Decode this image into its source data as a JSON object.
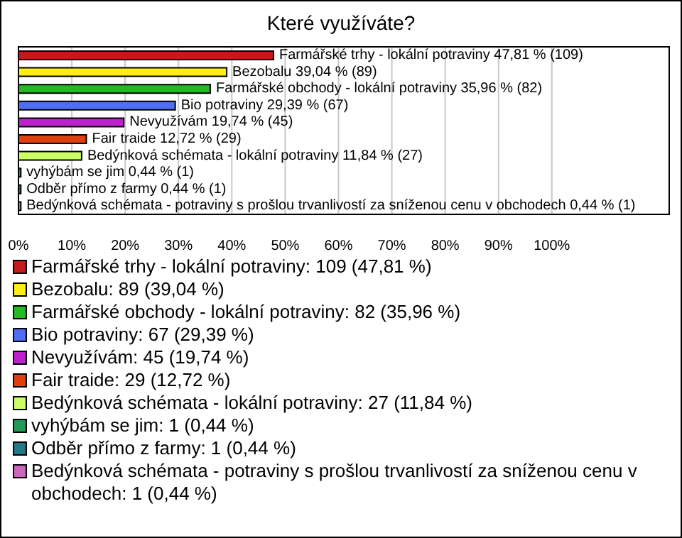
{
  "chart_data": {
    "type": "bar",
    "orientation": "horizontal",
    "title": "Které využíváte?",
    "categories": [
      "Farmářské trhy - lokální potraviny",
      "Bezobalu",
      "Farmářské obchody - lokální potraviny",
      "Bio potraviny",
      "Nevyužívám",
      "Fair traide",
      "Bedýnková schémata - lokální potraviny",
      "vyhýbám se jim",
      "Odběr přímo z farmy",
      "Bedýnková schémata - potraviny s prošlou trvanlivostí za sníženou cenu v obchodech"
    ],
    "values": [
      47.81,
      39.04,
      35.96,
      29.39,
      19.74,
      12.72,
      11.84,
      0.44,
      0.44,
      0.44
    ],
    "value_labels": [
      "47,81 % (109)",
      "39,04 % (89)",
      "35,96 % (82)",
      "29,39 % (67)",
      "19,74 % (45)",
      "12,72 % (29)",
      "11,84 % (27)",
      "0,44 % (1)",
      "0,44 % (1)",
      "0,44 % (1)"
    ],
    "colors": [
      "#c41a1a",
      "#ffee11",
      "#22bb22",
      "#4d6ef5",
      "#bb22cc",
      "#e04010",
      "#ccff66",
      "#229955",
      "#227788",
      "#cc66bb"
    ],
    "xlim": [
      0,
      122
    ],
    "xticks": [
      {
        "value": 0,
        "label": "0%"
      },
      {
        "value": 10,
        "label": "10%"
      },
      {
        "value": 20,
        "label": "20%"
      },
      {
        "value": 30,
        "label": "30%"
      },
      {
        "value": 40,
        "label": "40%"
      },
      {
        "value": 50,
        "label": "50%"
      },
      {
        "value": 60,
        "label": "60%"
      },
      {
        "value": 70,
        "label": "70%"
      },
      {
        "value": 80,
        "label": "80%"
      },
      {
        "value": 90,
        "label": "90%"
      },
      {
        "value": 100,
        "label": "100%"
      }
    ],
    "grid": "x",
    "annotations": [
      "Farmářské trhy - lokální potraviny: 109 (47,81 %)",
      "Bezobalu: 89 (39,04 %)",
      "Farmářské obchody - lokální potraviny: 82 (35,96 %)",
      "Bio potraviny: 67 (29,39 %)",
      "Nevyužívám: 45 (19,74 %)",
      "Fair traide: 29 (12,72 %)",
      "Bedýnková schémata - lokální potraviny: 27 (11,84 %)",
      "vyhýbám se jim: 1 (0,44 %)",
      "Odběr přímo z farmy: 1 (0,44 %)",
      "Bedýnková schémata - potraviny s prošlou trvanlivostí za sníženou cenu v obchodech: 1 (0,44 %)"
    ]
  }
}
